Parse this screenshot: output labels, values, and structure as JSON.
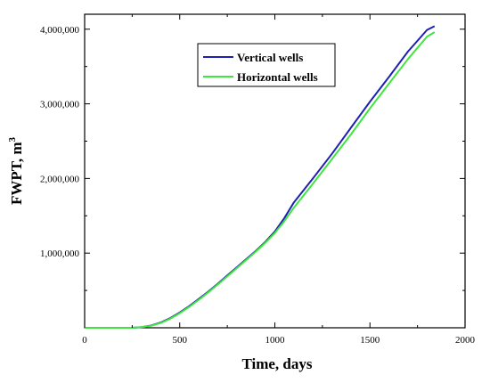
{
  "chart_data": {
    "type": "line",
    "xlabel": "Time, days",
    "ylabel": "FWPT, m",
    "ylabel_superscript": "3",
    "xlim": [
      0,
      2000
    ],
    "ylim": [
      0,
      4200000
    ],
    "xticks": [
      0,
      500,
      1000,
      1500,
      2000
    ],
    "xtick_labels": [
      "0",
      "500",
      "1000",
      "1500",
      "2000"
    ],
    "yticks": [
      1000000,
      2000000,
      3000000,
      4000000
    ],
    "ytick_labels": [
      "1,000,000",
      "2,000,000",
      "3,000,000",
      "4,000,000"
    ],
    "grid": false,
    "legend_position": "top-center",
    "series": [
      {
        "name": "Vertical wells",
        "color": "#1f1fb4",
        "x": [
          0,
          250,
          300,
          350,
          400,
          450,
          500,
          550,
          600,
          650,
          700,
          750,
          800,
          850,
          900,
          950,
          1000,
          1050,
          1100,
          1200,
          1300,
          1400,
          1500,
          1600,
          1700,
          1800,
          1840
        ],
        "y": [
          0,
          0,
          10000,
          30000,
          70000,
          130000,
          205000,
          290000,
          385000,
          485000,
          590000,
          700000,
          810000,
          920000,
          1030000,
          1150000,
          1290000,
          1470000,
          1680000,
          2000000,
          2330000,
          2680000,
          3030000,
          3360000,
          3700000,
          3990000,
          4040000
        ]
      },
      {
        "name": "Horizontal wells",
        "color": "#3ee63e",
        "x": [
          0,
          250,
          300,
          350,
          400,
          450,
          500,
          550,
          600,
          650,
          700,
          750,
          800,
          850,
          900,
          950,
          1000,
          1050,
          1100,
          1200,
          1300,
          1400,
          1500,
          1600,
          1700,
          1800,
          1840
        ],
        "y": [
          0,
          0,
          8000,
          28000,
          65000,
          122000,
          196000,
          280000,
          375000,
          475000,
          580000,
          690000,
          800000,
          910000,
          1020000,
          1140000,
          1270000,
          1430000,
          1610000,
          1930000,
          2260000,
          2590000,
          2940000,
          3270000,
          3600000,
          3900000,
          3960000
        ]
      }
    ]
  }
}
